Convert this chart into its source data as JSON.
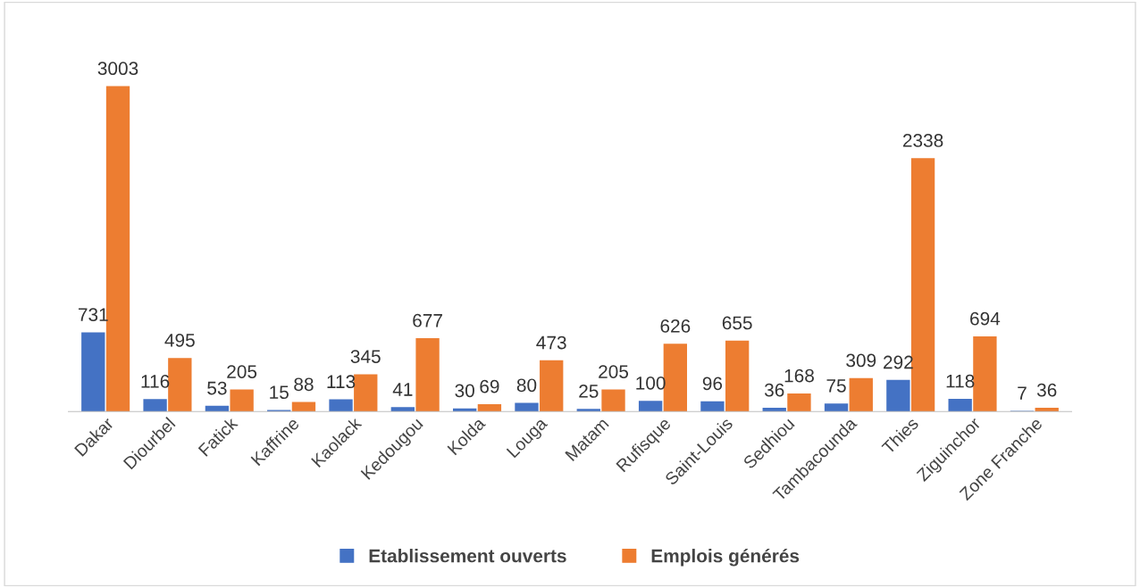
{
  "chart_data": {
    "type": "bar",
    "categories": [
      "Dakar",
      "Diourbel",
      "Fatick",
      "Kaffrine",
      "Kaolack",
      "Kedougou",
      "Kolda",
      "Louga",
      "Matam",
      "Rufisque",
      "Saint-Louis",
      "Sedhiou",
      "Tambacounda",
      "Thies",
      "Ziguinchor",
      "Zone Franche"
    ],
    "series": [
      {
        "name": "Etablissement ouverts",
        "color": "#4472c4",
        "values": [
          731,
          116,
          53,
          15,
          113,
          41,
          30,
          80,
          25,
          100,
          96,
          36,
          75,
          292,
          118,
          7
        ]
      },
      {
        "name": "Emplois générés",
        "color": "#ed7d31",
        "values": [
          3003,
          495,
          205,
          88,
          345,
          677,
          69,
          473,
          205,
          626,
          655,
          168,
          309,
          2338,
          694,
          36
        ]
      }
    ],
    "data_labels": true,
    "legend": "bottom",
    "grid": false
  }
}
